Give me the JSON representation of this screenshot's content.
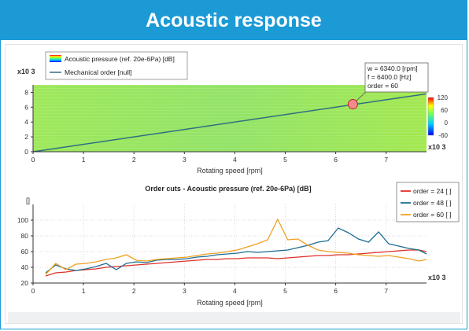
{
  "header": {
    "title": "Acoustic response"
  },
  "chart_data": [
    {
      "type": "heatmap",
      "title": "",
      "xlabel": "Rotating speed [rpm]",
      "ylabel": "",
      "x_multiplier": "x10 3",
      "y_multiplier": "x10 3",
      "xlim": [
        0,
        7800
      ],
      "ylim": [
        0,
        9000
      ],
      "xticks": [
        "0",
        "1",
        "2",
        "3",
        "4",
        "5",
        "6",
        "7"
      ],
      "yticks": [
        "0",
        "2",
        "4",
        "6",
        "8"
      ],
      "legend": {
        "placement": "top-left",
        "entries": [
          "Acoustic pressure (ref. 20e-6Pa) [dB]",
          "Mechanical order [null]"
        ]
      },
      "colorbar": {
        "ticks": [
          "120",
          "60",
          "0",
          "-60"
        ],
        "range": [
          -60,
          120
        ]
      },
      "band_hz": 4900,
      "mechanical_order": {
        "x": [
          0,
          7800
        ],
        "y": [
          0,
          7800
        ],
        "color": "#2f6f80"
      },
      "marker": {
        "x": 6340,
        "y": 6400
      },
      "tooltip": [
        "w = 6340.0 [rpm]",
        "f = 6400.0 [Hz]",
        "order = 60"
      ]
    },
    {
      "type": "line",
      "title": "Order cuts - Acoustic pressure (ref. 20e-6Pa) [dB]",
      "xlabel": "Rotating speed [rpm]",
      "ylabel": "[]",
      "x_multiplier": "x10 3",
      "xlim": [
        0,
        7800
      ],
      "ylim": [
        20,
        120
      ],
      "xticks": [
        "0",
        "1",
        "2",
        "3",
        "4",
        "5",
        "6",
        "7"
      ],
      "yticks": [
        "20",
        "40",
        "60",
        "80",
        "100"
      ],
      "grid": true,
      "legend": {
        "placement": "top-right"
      },
      "x": [
        250,
        450,
        650,
        850,
        1050,
        1250,
        1450,
        1650,
        1850,
        2050,
        2250,
        2450,
        2650,
        2850,
        3050,
        3250,
        3450,
        3650,
        3850,
        4050,
        4250,
        4450,
        4650,
        4850,
        5050,
        5250,
        5450,
        5650,
        5850,
        6050,
        6250,
        6450,
        6650,
        6850,
        7050,
        7250,
        7450,
        7650,
        7800
      ],
      "series": [
        {
          "name": "order = 24 [ ]",
          "color": "#e0302a",
          "values": [
            29,
            33,
            34,
            36,
            37,
            38,
            40,
            41,
            42,
            43,
            44,
            45,
            46,
            47,
            48,
            49,
            50,
            50,
            51,
            51,
            52,
            52,
            52,
            51,
            52,
            53,
            54,
            55,
            55,
            56,
            56,
            57,
            58,
            59,
            60,
            61,
            62,
            62,
            60
          ]
        },
        {
          "name": "order = 48 [ ]",
          "color": "#1e6e92",
          "values": [
            33,
            43,
            38,
            36,
            38,
            41,
            45,
            37,
            45,
            47,
            46,
            49,
            50,
            50,
            51,
            53,
            54,
            56,
            57,
            58,
            60,
            59,
            60,
            61,
            62,
            65,
            68,
            72,
            74,
            90,
            84,
            76,
            72,
            85,
            70,
            67,
            64,
            62,
            57
          ]
        },
        {
          "name": "order = 60 [ ]",
          "color": "#f0a020",
          "values": [
            31,
            45,
            37,
            44,
            45,
            47,
            50,
            52,
            56,
            49,
            48,
            50,
            51,
            52,
            53,
            55,
            57,
            58,
            60,
            62,
            66,
            70,
            75,
            101,
            75,
            76,
            68,
            62,
            60,
            59,
            58,
            56,
            55,
            54,
            55,
            53,
            51,
            48,
            50
          ]
        }
      ]
    }
  ]
}
